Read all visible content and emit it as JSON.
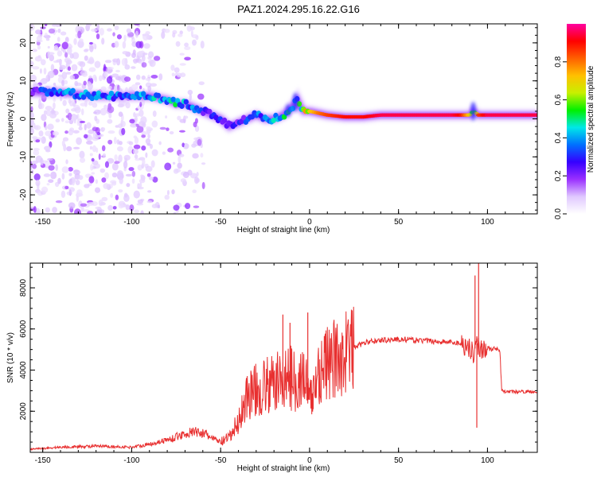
{
  "figure": {
    "title": "PAZ1.2024.295.16.22.G16"
  },
  "colorbar": {
    "label": "Normalized spectral amplitude",
    "ticks": [
      0.0,
      0.2,
      0.4,
      0.6,
      0.8
    ],
    "tick_labels": [
      "0.0",
      "0.2",
      "0.4",
      "0.6",
      "0.8"
    ],
    "range": [
      0,
      1
    ],
    "colormap": [
      "#ffffff",
      "#e0c8ff",
      "#9a30ff",
      "#3500ff",
      "#0070ff",
      "#00e8e8",
      "#00f000",
      "#c8f000",
      "#ffc000",
      "#ff6000",
      "#ff0000",
      "#ff00a0"
    ]
  },
  "chart_data": [
    {
      "type": "heatmap",
      "title": "",
      "xlabel": "Height of straight line (km)",
      "ylabel": "Frequency (Hz)",
      "xlim": [
        -157,
        128
      ],
      "ylim": [
        -25,
        25
      ],
      "xticks": [
        -150,
        -100,
        -50,
        0,
        50,
        100
      ],
      "xtick_labels": [
        "-150",
        "-100",
        "-50",
        "0",
        "50",
        "100"
      ],
      "yticks": [
        -20,
        -10,
        0,
        10,
        20
      ],
      "ytick_labels": [
        "-20",
        "-10",
        "0",
        "10",
        "20"
      ],
      "ridge": {
        "x": [
          -157,
          -150,
          -140,
          -130,
          -120,
          -110,
          -100,
          -90,
          -80,
          -75,
          -70,
          -65,
          -60,
          -55,
          -50,
          -45,
          -40,
          -35,
          -30,
          -25,
          -20,
          -15,
          -10,
          -7,
          -5,
          -3,
          0,
          5,
          10,
          20,
          30,
          40,
          50,
          60,
          70,
          80,
          85,
          90,
          92,
          95,
          100,
          110,
          128
        ],
        "freq": [
          7,
          7,
          7,
          6.5,
          6,
          6,
          6,
          6,
          5,
          4,
          4,
          3,
          2,
          1,
          0,
          -2,
          -1,
          0,
          1,
          0,
          0,
          1,
          3,
          5,
          3,
          2,
          2,
          1.5,
          1,
          0.5,
          0.5,
          1,
          1,
          1,
          1,
          1,
          1,
          1,
          2,
          1,
          1,
          1,
          1
        ],
        "amplitude": [
          0.15,
          0.3,
          0.35,
          0.4,
          0.4,
          0.35,
          0.35,
          0.4,
          0.45,
          0.45,
          0.4,
          0.4,
          0.3,
          0.3,
          0.3,
          0.25,
          0.25,
          0.3,
          0.35,
          0.4,
          0.4,
          0.45,
          0.5,
          0.4,
          0.55,
          0.65,
          0.7,
          0.8,
          0.85,
          0.9,
          0.9,
          0.95,
          0.95,
          0.95,
          0.95,
          0.95,
          0.9,
          0.7,
          0.5,
          0.85,
          0.95,
          0.95,
          0.95
        ]
      }
    },
    {
      "type": "line",
      "title": "",
      "xlabel": "Height of straight line (km)",
      "ylabel": "SNR (10 * v/v)",
      "xlim": [
        -157,
        128
      ],
      "ylim": [
        0,
        9200
      ],
      "xticks": [
        -150,
        -100,
        -50,
        0,
        50,
        100
      ],
      "xtick_labels": [
        "-150",
        "-100",
        "-50",
        "0",
        "50",
        "100"
      ],
      "yticks": [
        2000,
        4000,
        6000,
        8000
      ],
      "ytick_labels": [
        "2000",
        "4000",
        "6000",
        "8000"
      ],
      "series": [
        {
          "color": "#e83030",
          "x": [
            -157,
            -140,
            -120,
            -100,
            -90,
            -80,
            -70,
            -65,
            -60,
            -55,
            -50,
            -45,
            -40,
            -35,
            -30,
            -25,
            -20,
            -15,
            -10,
            -5,
            -3,
            0,
            3,
            5,
            10,
            15,
            20,
            30,
            35,
            40,
            50,
            60,
            70,
            80,
            85,
            88,
            90,
            92,
            94,
            96,
            98,
            100,
            105,
            107,
            108,
            110,
            128
          ],
          "y": [
            150,
            250,
            300,
            250,
            400,
            600,
            900,
            1000,
            950,
            700,
            500,
            700,
            1500,
            2800,
            3000,
            3200,
            3300,
            3600,
            3600,
            3500,
            3800,
            2400,
            3200,
            4000,
            4300,
            4500,
            4900,
            5300,
            5400,
            5450,
            5500,
            5450,
            5400,
            5350,
            5300,
            5200,
            5100,
            4800,
            5300,
            5000,
            5100,
            5050,
            5000,
            4900,
            3000,
            2950,
            2950
          ]
        }
      ],
      "spikes": [
        {
          "x": -15,
          "y": 6700
        },
        {
          "x": -11,
          "y": 6300
        },
        {
          "x": -1,
          "y": 6800
        },
        {
          "x": 2,
          "y": 2100
        },
        {
          "x": 93,
          "y": 8600
        },
        {
          "x": 94,
          "y": 1200
        },
        {
          "x": 95,
          "y": 9200
        }
      ]
    }
  ]
}
